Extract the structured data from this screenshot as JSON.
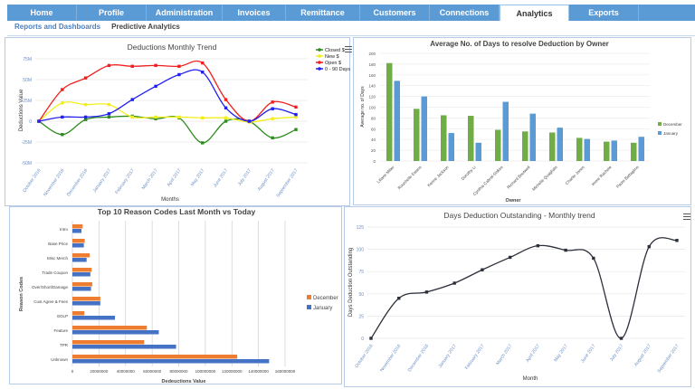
{
  "nav": {
    "tabs": [
      {
        "label": "Home"
      },
      {
        "label": "Profile"
      },
      {
        "label": "Administration"
      },
      {
        "label": "Invoices"
      },
      {
        "label": "Remittance"
      },
      {
        "label": "Customers"
      },
      {
        "label": "Connections"
      },
      {
        "label": "Analytics",
        "active": true
      },
      {
        "label": "Exports"
      }
    ],
    "color": "#5b9bd5"
  },
  "subnav": {
    "items": [
      {
        "label": "Reports and Dashboards",
        "active": true
      },
      {
        "label": "Predictive Analytics"
      }
    ]
  },
  "chart_data": [
    {
      "type": "line",
      "title": "Deductions Monthly Trend",
      "xlabel": "Months",
      "ylabel": "Deductions Value",
      "categories": [
        "October 2016",
        "November 2016",
        "December 2016",
        "January 2017",
        "February 2017",
        "March 2017",
        "April 2017",
        "May 2017",
        "June 2017",
        "July 2017",
        "August 2017",
        "September 2017"
      ],
      "yticks": [
        "-50M",
        "-25M",
        "0",
        "25M",
        "50M",
        "75M"
      ],
      "ylim": [
        -50,
        75
      ],
      "unit": "M",
      "grid": true,
      "legend": "top-right",
      "series": [
        {
          "name": "Closed $",
          "color": "#2e8b1e",
          "values": [
            0,
            -16,
            2,
            5,
            6,
            3,
            4,
            -26,
            0,
            0,
            -20,
            -10
          ]
        },
        {
          "name": "New $",
          "color": "#f2ee1a",
          "values": [
            0,
            22,
            20,
            20,
            5,
            5,
            5,
            4,
            4,
            -1,
            3,
            5
          ]
        },
        {
          "name": "Open $",
          "color": "#f01e1e",
          "values": [
            0,
            38,
            52,
            67,
            66,
            67,
            66,
            70,
            26,
            0,
            23,
            17
          ]
        },
        {
          "name": "0 - 90 Days",
          "color": "#2020f0",
          "values": [
            0,
            5,
            5,
            9,
            26,
            42,
            56,
            59,
            16,
            0,
            15,
            8
          ]
        }
      ]
    },
    {
      "type": "bar",
      "title": "Average No. of Days to resolve Deduction by Owner",
      "xlabel": "Owner",
      "ylabel": "Average no. of Days",
      "categories": [
        "Liliane Miller",
        "Rouchelle Ewans",
        "Kerine Jackson",
        "Dorothy Li",
        "Cynthia Cabral-Siskes",
        "Richard Boutwell",
        "Michelle Quagliato",
        "Charlie Jones",
        "Imme Rachele",
        "Paolo Battaglino"
      ],
      "ylim": [
        0,
        200
      ],
      "yticks": [
        "0",
        "20",
        "40",
        "60",
        "80",
        "100",
        "120",
        "140",
        "160",
        "180",
        "200"
      ],
      "grid": true,
      "legend": "right",
      "series": [
        {
          "name": "December",
          "color": "#70ad47",
          "values": [
            182,
            97,
            85,
            84,
            58,
            55,
            53,
            43,
            36,
            34
          ]
        },
        {
          "name": "January",
          "color": "#5b9bd5",
          "values": [
            149,
            120,
            52,
            34,
            110,
            88,
            62,
            41,
            38,
            45
          ]
        }
      ]
    },
    {
      "type": "bar",
      "orientation": "horizontal",
      "title": "Top 10 Reason Codes Last Month vs Today",
      "xlabel": "Dedeuctions Value",
      "ylabel": "Reason Codes",
      "categories": [
        "Intro",
        "Base Price",
        "Misc Merch",
        "Trade Coupon",
        "Over/Short/Damage",
        "Cust Agree & Fees",
        "EDLP",
        "Feature",
        "TPR",
        "Unknown"
      ],
      "xlim": [
        0,
        160000000
      ],
      "xticks": [
        "0",
        "20000000",
        "40000000",
        "60000000",
        "80000000",
        "100000000",
        "120000000",
        "140000000",
        "160000000"
      ],
      "grid": true,
      "legend": "right",
      "series": [
        {
          "name": "December",
          "color": "#ed7d31",
          "values": [
            7700000,
            9300000,
            13000000,
            14500000,
            15000000,
            21000000,
            9000000,
            56000000,
            54000000,
            124000000
          ]
        },
        {
          "name": "January",
          "color": "#4472c4",
          "values": [
            6800000,
            8600000,
            10700000,
            13500000,
            14000000,
            21000000,
            32000000,
            65000000,
            78000000,
            148000000
          ]
        }
      ]
    },
    {
      "type": "line",
      "title": "Days Deduction Outstanding - Monthly trend",
      "xlabel": "Month",
      "ylabel": "Days Deduction Outstanding",
      "categories": [
        "October 2016",
        "November 2016",
        "December 2016",
        "January 2017",
        "February 2017",
        "March 2017",
        "April 2017",
        "May 2017",
        "June 2017",
        "July 2017",
        "August 2017",
        "September 2017"
      ],
      "ylim": [
        0,
        125
      ],
      "yticks": [
        "0",
        "25",
        "50",
        "75",
        "100",
        "125"
      ],
      "grid": true,
      "series": [
        {
          "color": "#2b2f3a",
          "values": [
            0,
            45,
            52,
            62,
            77,
            91,
            104,
            99,
            90,
            0,
            103,
            110
          ]
        }
      ]
    }
  ]
}
